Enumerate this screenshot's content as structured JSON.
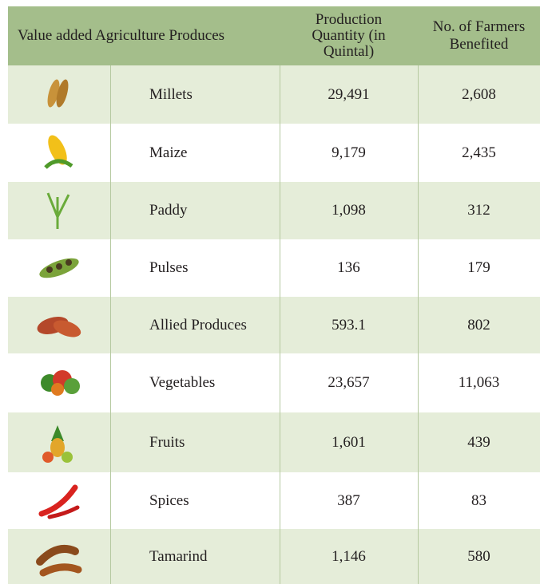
{
  "table": {
    "header": [
      "Value added Agriculture Produces",
      "Production Quantity (in Quintal)",
      "No. of Farmers Benefited"
    ],
    "rows": [
      [
        "Millets",
        "29,491",
        "2,608"
      ],
      [
        "Maize",
        "9,179",
        "2,435"
      ],
      [
        "Paddy",
        "1,098",
        "312"
      ],
      [
        "Pulses",
        "136",
        "179"
      ],
      [
        "Allied Produces",
        "593.1",
        "802"
      ],
      [
        "Vegetables",
        "23,657",
        "11,063"
      ],
      [
        "Fruits",
        "1,601",
        "439"
      ],
      [
        "Spices",
        "387",
        "83"
      ],
      [
        "Tamarind",
        "1,146",
        "580"
      ]
    ]
  }
}
